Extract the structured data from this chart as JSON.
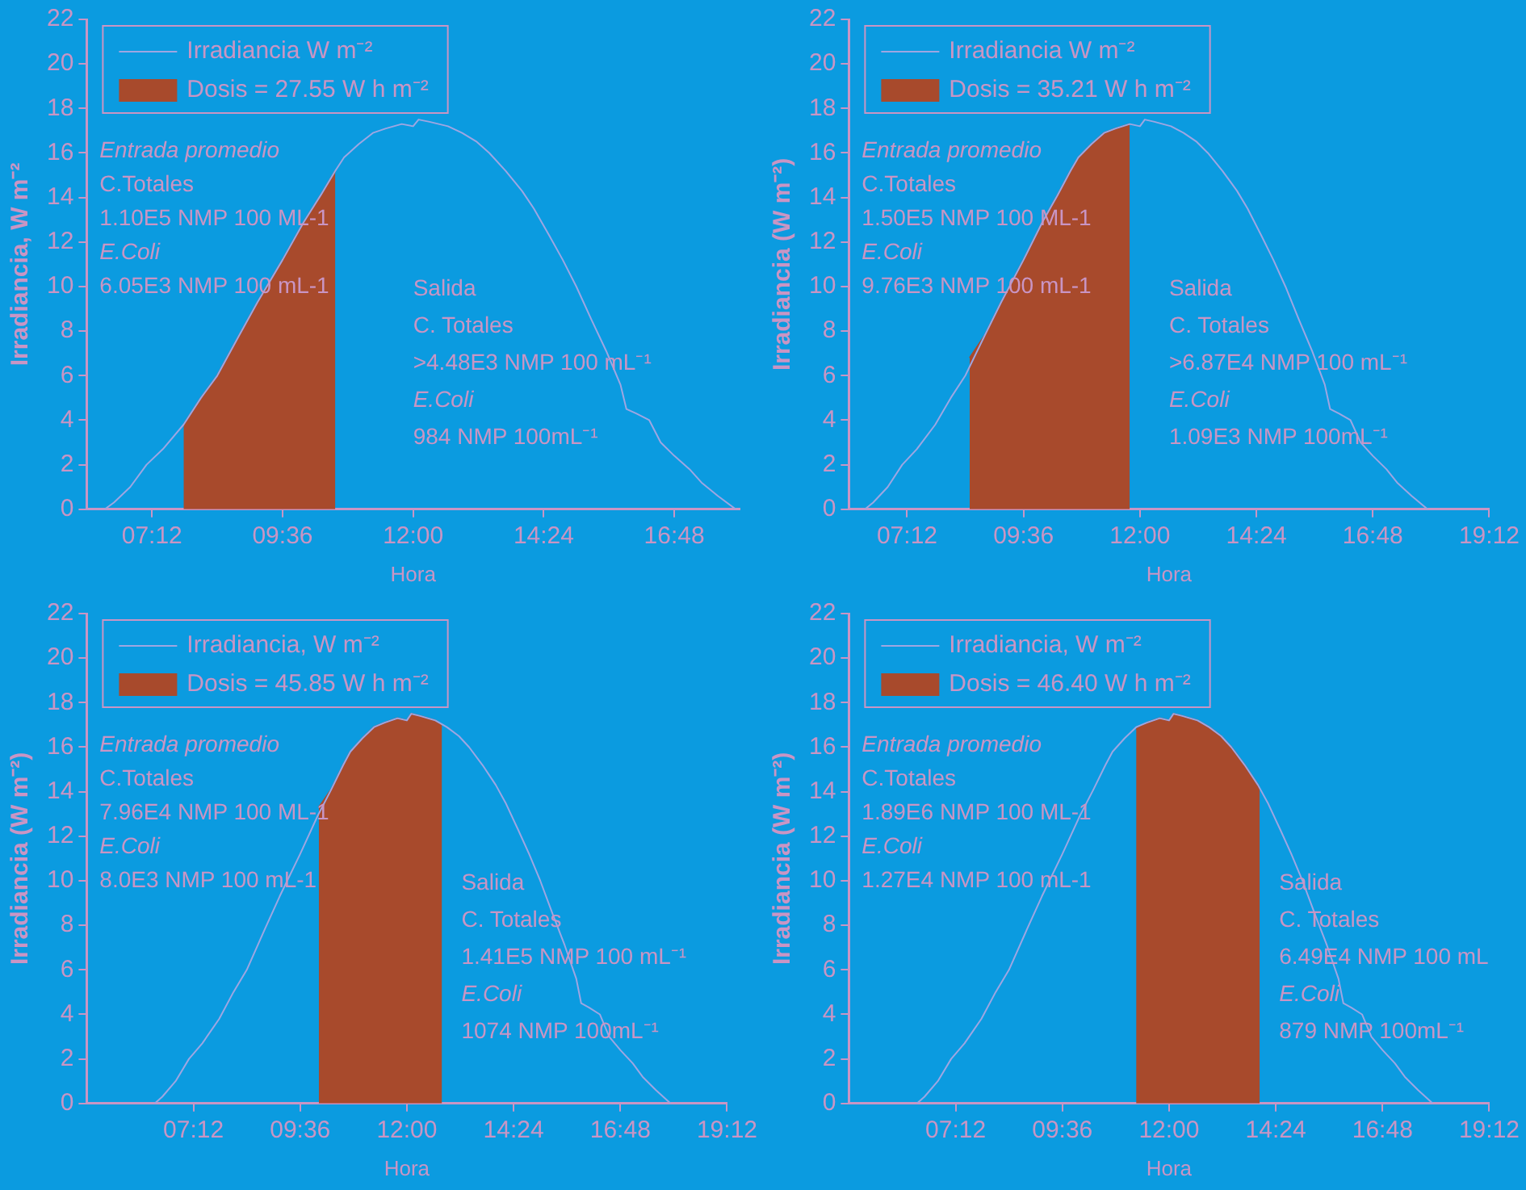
{
  "chart_data": [
    {
      "type": "line",
      "xlabel": "Hora",
      "ylabel": "Irradiancia, W m⁻²",
      "legend": "top left",
      "xlim": [
        6,
        18
      ],
      "ylim": [
        0,
        22
      ],
      "xticks": [
        {
          "value": 7.2,
          "label": "07:12"
        },
        {
          "value": 9.6,
          "label": "09:36"
        },
        {
          "value": 12,
          "label": "12:00"
        },
        {
          "value": 14.4,
          "label": "14:24"
        },
        {
          "value": 16.8,
          "label": "16:48"
        }
      ],
      "yticks": [
        0,
        2,
        4,
        6,
        8,
        10,
        12,
        14,
        16,
        18,
        20,
        22
      ],
      "series": [
        {
          "name": "Irradiancia W m⁻²",
          "type": "line",
          "color": "#9ea6e2",
          "x": [
            6.33,
            6.5,
            6.8,
            7.1,
            7.4,
            7.78,
            8.1,
            8.4,
            8.8,
            9.14,
            9.6,
            9.99,
            10.3,
            10.57,
            10.73,
            11.0,
            11.26,
            11.5,
            11.79,
            12.0,
            12.1,
            12.3,
            12.64,
            12.9,
            13.17,
            13.4,
            13.7,
            14.0,
            14.22,
            14.5,
            14.75,
            15.0,
            15.28,
            15.55,
            15.81,
            15.92,
            16.1,
            16.34,
            16.55,
            16.8,
            17.08,
            17.3,
            17.6,
            17.93
          ],
          "values": [
            0,
            0.3,
            1.0,
            2.0,
            2.7,
            3.8,
            5.0,
            6.0,
            7.8,
            9.3,
            11.2,
            12.9,
            14.1,
            15.2,
            15.8,
            16.4,
            16.9,
            17.1,
            17.3,
            17.2,
            17.5,
            17.4,
            17.2,
            16.9,
            16.5,
            16.0,
            15.2,
            14.3,
            13.5,
            12.3,
            11.2,
            10.0,
            8.5,
            7.1,
            5.6,
            4.5,
            4.3,
            4.0,
            3.0,
            2.4,
            1.8,
            1.2,
            0.6,
            0
          ]
        },
        {
          "name": "Dosis = 27.55 W h m⁻²",
          "type": "area",
          "color": "#a84a2c",
          "x": [
            7.78,
            8.1,
            8.4,
            8.8,
            9.14,
            9.6,
            9.99,
            10.3,
            10.57
          ],
          "values": [
            3.8,
            5.0,
            6.0,
            7.8,
            9.3,
            11.2,
            12.9,
            14.1,
            15.2
          ]
        }
      ],
      "annotations": [
        "Entrada promedio",
        "C.Totales",
        "1.10E5 NMP 100 ML-1",
        "E.Coli",
        "6.05E3 NMP 100 mL-1",
        "Salida",
        "C. Totales",
        ">4.48E3 NMP 100 mL⁻¹",
        "E.Coli",
        "984 NMP 100mL⁻¹"
      ]
    },
    {
      "type": "line",
      "xlabel": "Hora",
      "ylabel": "Irradiancia (W m⁻²)",
      "legend": "top left",
      "xlim": [
        6,
        19.2
      ],
      "ylim": [
        0,
        22
      ],
      "xticks": [
        {
          "value": 7.2,
          "label": "07:12"
        },
        {
          "value": 9.6,
          "label": "09:36"
        },
        {
          "value": 12,
          "label": "12:00"
        },
        {
          "value": 14.4,
          "label": "14:24"
        },
        {
          "value": 16.8,
          "label": "16:48"
        },
        {
          "value": 19.2,
          "label": "19:12"
        }
      ],
      "yticks": [
        0,
        2,
        4,
        6,
        8,
        10,
        12,
        14,
        16,
        18,
        20,
        22
      ],
      "series": [
        {
          "name": "Irradiancia W m⁻²",
          "type": "line",
          "color": "#9ea6e2",
          "x": [
            6.33,
            6.5,
            6.8,
            7.1,
            7.4,
            7.78,
            8.1,
            8.4,
            8.8,
            9.14,
            9.6,
            9.99,
            10.3,
            10.57,
            10.73,
            11.0,
            11.26,
            11.5,
            11.79,
            12.0,
            12.1,
            12.3,
            12.64,
            12.9,
            13.17,
            13.4,
            13.7,
            14.0,
            14.22,
            14.5,
            14.75,
            15.0,
            15.28,
            15.55,
            15.81,
            15.92,
            16.1,
            16.34,
            16.55,
            16.8,
            17.08,
            17.3,
            17.6,
            17.93
          ],
          "values": [
            0,
            0.3,
            1.0,
            2.0,
            2.7,
            3.8,
            5.0,
            6.0,
            7.8,
            9.3,
            11.2,
            12.9,
            14.1,
            15.2,
            15.8,
            16.4,
            16.9,
            17.1,
            17.3,
            17.2,
            17.5,
            17.4,
            17.2,
            16.9,
            16.5,
            16.0,
            15.2,
            14.3,
            13.5,
            12.3,
            11.2,
            10.0,
            8.5,
            7.1,
            5.6,
            4.5,
            4.3,
            4.0,
            3.0,
            2.4,
            1.8,
            1.2,
            0.6,
            0
          ]
        },
        {
          "name": "Dosis = 35.21 W h m⁻²",
          "type": "area",
          "color": "#a84a2c",
          "x": [
            8.49,
            8.8,
            9.14,
            9.6,
            9.99,
            10.3,
            10.57,
            10.73,
            11.0,
            11.26,
            11.5,
            11.79
          ],
          "values": [
            6.8,
            7.8,
            9.3,
            11.2,
            12.9,
            14.1,
            15.2,
            15.8,
            16.4,
            16.9,
            17.1,
            17.3
          ]
        }
      ],
      "annotations": [
        "Entrada promedio",
        "C.Totales",
        "1.50E5 NMP 100 ML-1",
        "E.Coli",
        "9.76E3 NMP 100 mL-1",
        "Salida",
        "C. Totales",
        ">6.87E4 NMP 100 mL⁻¹",
        "E.Coli",
        "1.09E3 NMP 100mL⁻¹"
      ]
    },
    {
      "type": "line",
      "xlabel": "Hora",
      "ylabel": "Irradiancia (W m⁻²)",
      "legend": "top left",
      "xlim": [
        4.8,
        19.2
      ],
      "ylim": [
        0,
        22
      ],
      "xticks": [
        {
          "value": 7.2,
          "label": "07:12"
        },
        {
          "value": 9.6,
          "label": "09:36"
        },
        {
          "value": 12,
          "label": "12:00"
        },
        {
          "value": 14.4,
          "label": "14:24"
        },
        {
          "value": 16.8,
          "label": "16:48"
        },
        {
          "value": 19.2,
          "label": "19:12"
        }
      ],
      "yticks": [
        0,
        2,
        4,
        6,
        8,
        10,
        12,
        14,
        16,
        18,
        20,
        22
      ],
      "series": [
        {
          "name": "Irradiancia, W m⁻²",
          "type": "line",
          "color": "#9ea6e2",
          "x": [
            6.33,
            6.5,
            6.8,
            7.1,
            7.4,
            7.78,
            8.1,
            8.4,
            8.8,
            9.14,
            9.6,
            9.99,
            10.3,
            10.57,
            10.73,
            11.0,
            11.26,
            11.5,
            11.79,
            12.0,
            12.1,
            12.3,
            12.64,
            12.9,
            13.17,
            13.4,
            13.7,
            14.0,
            14.22,
            14.5,
            14.75,
            15.0,
            15.28,
            15.55,
            15.81,
            15.92,
            16.1,
            16.34,
            16.55,
            16.8,
            17.08,
            17.3,
            17.6,
            17.93
          ],
          "values": [
            0,
            0.3,
            1.0,
            2.0,
            2.7,
            3.8,
            5.0,
            6.0,
            7.8,
            9.3,
            11.2,
            12.9,
            14.1,
            15.2,
            15.8,
            16.4,
            16.9,
            17.1,
            17.3,
            17.2,
            17.5,
            17.4,
            17.2,
            16.9,
            16.5,
            16.0,
            15.2,
            14.3,
            13.5,
            12.3,
            11.2,
            10.0,
            8.5,
            7.1,
            5.6,
            4.5,
            4.3,
            4.0,
            3.0,
            2.4,
            1.8,
            1.2,
            0.6,
            0
          ]
        },
        {
          "name": "Dosis = 45.85 W h m⁻²",
          "type": "area",
          "color": "#a84a2c",
          "x": [
            10.02,
            10.3,
            10.57,
            10.73,
            11.0,
            11.26,
            11.5,
            11.79,
            12.0,
            12.1,
            12.3,
            12.64,
            12.79
          ],
          "values": [
            13.3,
            14.1,
            15.2,
            15.8,
            16.4,
            16.9,
            17.1,
            17.3,
            17.2,
            17.5,
            17.4,
            17.2,
            17.0
          ]
        }
      ],
      "annotations": [
        "Entrada promedio",
        "C.Totales",
        "7.96E4 NMP 100 ML-1",
        "E.Coli",
        "8.0E3 NMP 100 mL-1",
        "Salida",
        "C. Totales",
        "1.41E5 NMP 100 mL⁻¹",
        "E.Coli",
        "1074 NMP 100mL⁻¹"
      ]
    },
    {
      "type": "line",
      "xlabel": "Hora",
      "ylabel": "Irradiancia (W m⁻²)",
      "legend": "top left",
      "xlim": [
        4.8,
        19.2
      ],
      "ylim": [
        0,
        22
      ],
      "xticks": [
        {
          "value": 7.2,
          "label": "07:12"
        },
        {
          "value": 9.6,
          "label": "09:36"
        },
        {
          "value": 12,
          "label": "12:00"
        },
        {
          "value": 14.4,
          "label": "14:24"
        },
        {
          "value": 16.8,
          "label": "16:48"
        },
        {
          "value": 19.2,
          "label": "19:12"
        }
      ],
      "yticks": [
        0,
        2,
        4,
        6,
        8,
        10,
        12,
        14,
        16,
        18,
        20,
        22
      ],
      "series": [
        {
          "name": "Irradiancia, W m⁻²",
          "type": "line",
          "color": "#9ea6e2",
          "x": [
            6.33,
            6.5,
            6.8,
            7.1,
            7.4,
            7.78,
            8.1,
            8.4,
            8.8,
            9.14,
            9.6,
            9.99,
            10.3,
            10.57,
            10.73,
            11.0,
            11.26,
            11.5,
            11.79,
            12.0,
            12.1,
            12.3,
            12.64,
            12.9,
            13.17,
            13.4,
            13.7,
            14.0,
            14.22,
            14.5,
            14.75,
            15.0,
            15.28,
            15.55,
            15.81,
            15.92,
            16.1,
            16.34,
            16.55,
            16.8,
            17.08,
            17.3,
            17.6,
            17.93
          ],
          "values": [
            0,
            0.3,
            1.0,
            2.0,
            2.7,
            3.8,
            5.0,
            6.0,
            7.8,
            9.3,
            11.2,
            12.9,
            14.1,
            15.2,
            15.8,
            16.4,
            16.9,
            17.1,
            17.3,
            17.2,
            17.5,
            17.4,
            17.2,
            16.9,
            16.5,
            16.0,
            15.2,
            14.3,
            13.5,
            12.3,
            11.2,
            10.0,
            8.5,
            7.1,
            5.6,
            4.5,
            4.3,
            4.0,
            3.0,
            2.4,
            1.8,
            1.2,
            0.6,
            0
          ]
        },
        {
          "name": "Dosis = 46.40 W h m⁻²",
          "type": "area",
          "color": "#a84a2c",
          "x": [
            11.26,
            11.5,
            11.79,
            12.0,
            12.1,
            12.3,
            12.64,
            12.9,
            13.17,
            13.4,
            13.7,
            14.0,
            14.04
          ],
          "values": [
            16.8,
            17.1,
            17.3,
            17.2,
            17.5,
            17.4,
            17.2,
            16.9,
            16.5,
            16.0,
            15.2,
            14.3,
            14.1
          ]
        }
      ],
      "annotations": [
        "Entrada promedio",
        "C.Totales",
        "1.89E6 NMP 100 ML-1",
        "E.Coli",
        "1.27E4 NMP 100 mL-1",
        "Salida",
        "C. Totales",
        "6.49E4 NMP 100 mL",
        "E.Coli",
        "879 NMP 100mL⁻¹"
      ]
    }
  ]
}
